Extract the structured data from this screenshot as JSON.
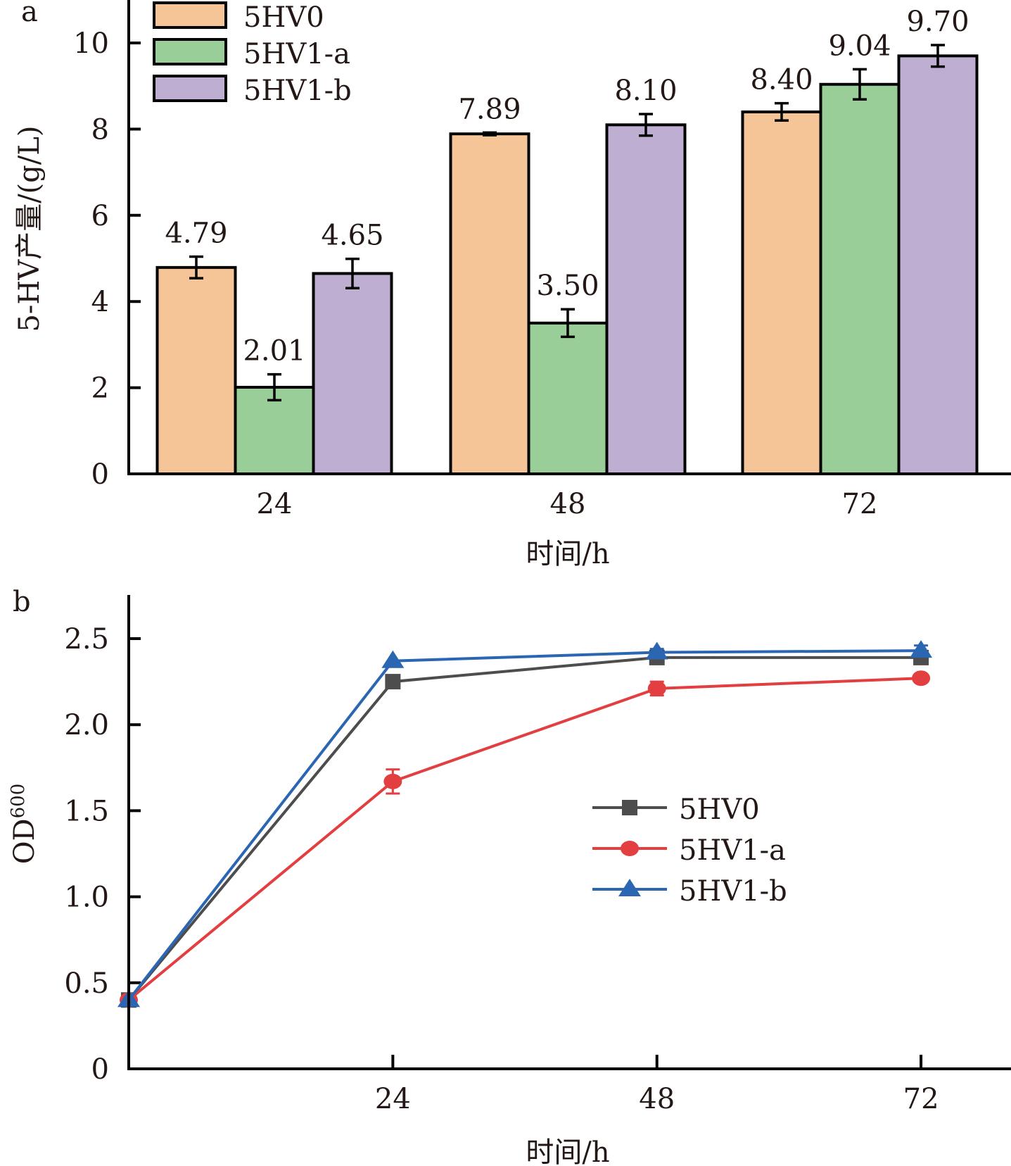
{
  "chart_data": [
    {
      "type": "bar",
      "panel_label": "a",
      "title": "",
      "xlabel": "时间/h",
      "ylabel": "5-HV产量/(g/L)",
      "categories": [
        "24",
        "48",
        "72"
      ],
      "ylim": [
        0,
        10.5
      ],
      "yticks": [
        0,
        2,
        4,
        6,
        8,
        10
      ],
      "ytick_labels": [
        "0",
        "2",
        "4",
        "6",
        "8",
        "10"
      ],
      "grid": false,
      "legend_position": "top-left",
      "series": [
        {
          "name": "5HV0",
          "color": "#F5C598",
          "values": [
            4.79,
            7.89,
            8.4
          ],
          "errors": [
            0.25,
            0.03,
            0.2
          ],
          "labels": [
            "4.79",
            "7.89",
            "8.40"
          ]
        },
        {
          "name": "5HV1-a",
          "color": "#9ACE98",
          "values": [
            2.01,
            3.5,
            9.04
          ],
          "errors": [
            0.3,
            0.32,
            0.35
          ],
          "labels": [
            "2.01",
            "3.50",
            "9.04"
          ]
        },
        {
          "name": "5HV1-b",
          "color": "#BDAED2",
          "values": [
            4.65,
            8.1,
            9.7
          ],
          "errors": [
            0.34,
            0.25,
            0.25
          ],
          "labels": [
            "4.65",
            "8.10",
            "9.70"
          ]
        }
      ]
    },
    {
      "type": "line",
      "panel_label": "b",
      "title": "",
      "xlabel": "时间/h",
      "ylabel": "OD",
      "ylabel_subscript": "600",
      "x": [
        0,
        24,
        48,
        72
      ],
      "xticks": [
        24,
        48,
        72
      ],
      "xtick_labels": [
        "24",
        "48",
        "72"
      ],
      "xlim": [
        0,
        80
      ],
      "ylim": [
        0,
        2.75
      ],
      "yticks": [
        0,
        0.5,
        1.0,
        1.5,
        2.0,
        2.5
      ],
      "ytick_labels": [
        "0",
        "0.5",
        "1.0",
        "1.5",
        "2.0",
        "2.5"
      ],
      "grid": false,
      "legend_position": "center-right",
      "series": [
        {
          "name": "5HV0",
          "color": "#4D4D4D",
          "marker": "square",
          "values": [
            0.4,
            2.25,
            2.39,
            2.39
          ],
          "errors": [
            0.01,
            0.01,
            0.02,
            0.01
          ]
        },
        {
          "name": "5HV1-a",
          "color": "#E33E40",
          "marker": "circle",
          "values": [
            0.4,
            1.67,
            2.21,
            2.27
          ],
          "errors": [
            0.01,
            0.07,
            0.04,
            0.02
          ]
        },
        {
          "name": "5HV1-b",
          "color": "#2A66B1",
          "marker": "triangle",
          "values": [
            0.4,
            2.37,
            2.42,
            2.43
          ],
          "errors": [
            0.01,
            0.01,
            0.02,
            0.03
          ]
        }
      ]
    }
  ]
}
